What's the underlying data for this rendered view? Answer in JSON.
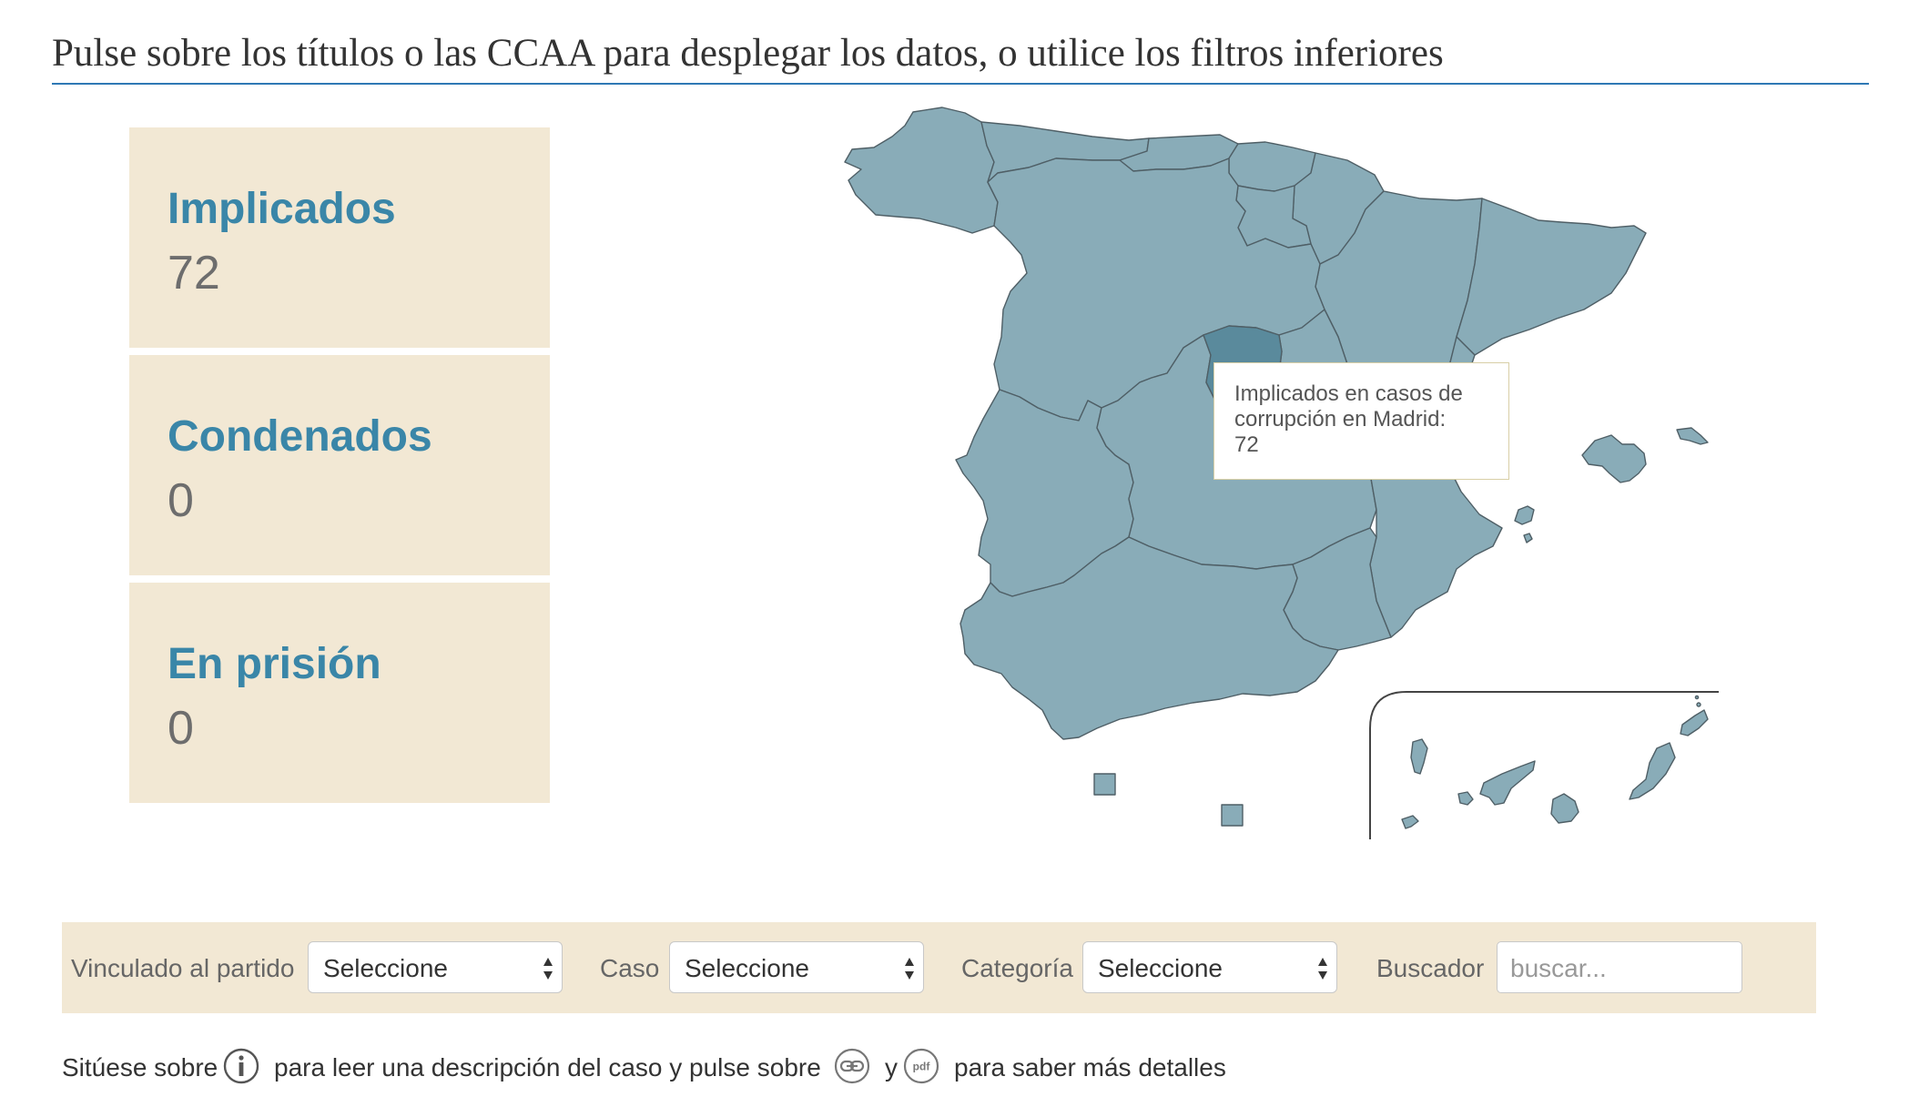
{
  "heading": "Pulse sobre los títulos o las CCAA para desplegar los datos, o utilice los filtros inferiores",
  "stats": [
    {
      "label": "Implicados",
      "value": "72"
    },
    {
      "label": "Condenados",
      "value": "0"
    },
    {
      "label": "En prisión",
      "value": "0"
    }
  ],
  "map": {
    "region_color": "#89acb8",
    "highlight_color": "#5a8a9c",
    "border_color": "#4f5f66",
    "highlighted_region": "Madrid",
    "tooltip": {
      "line1": "Implicados en casos de",
      "line2": "corrupción en Madrid:",
      "line3": "72"
    }
  },
  "filters": {
    "partido_label": "Vinculado al partido",
    "partido_value": "Seleccione",
    "caso_label": "Caso",
    "caso_value": "Seleccione",
    "categoria_label": "Categoría",
    "categoria_value": "Seleccione",
    "buscador_label": "Buscador",
    "buscador_placeholder": "buscar..."
  },
  "footer": {
    "part1": "Sitúese sobre",
    "part2": "para leer una descripción del caso y pulse sobre",
    "part3": "y",
    "part4": "para saber más detalles",
    "info_icon": "info-icon",
    "link_icon": "link-icon",
    "pdf_icon": "pdf-icon",
    "pdf_icon_text": "pdf"
  }
}
